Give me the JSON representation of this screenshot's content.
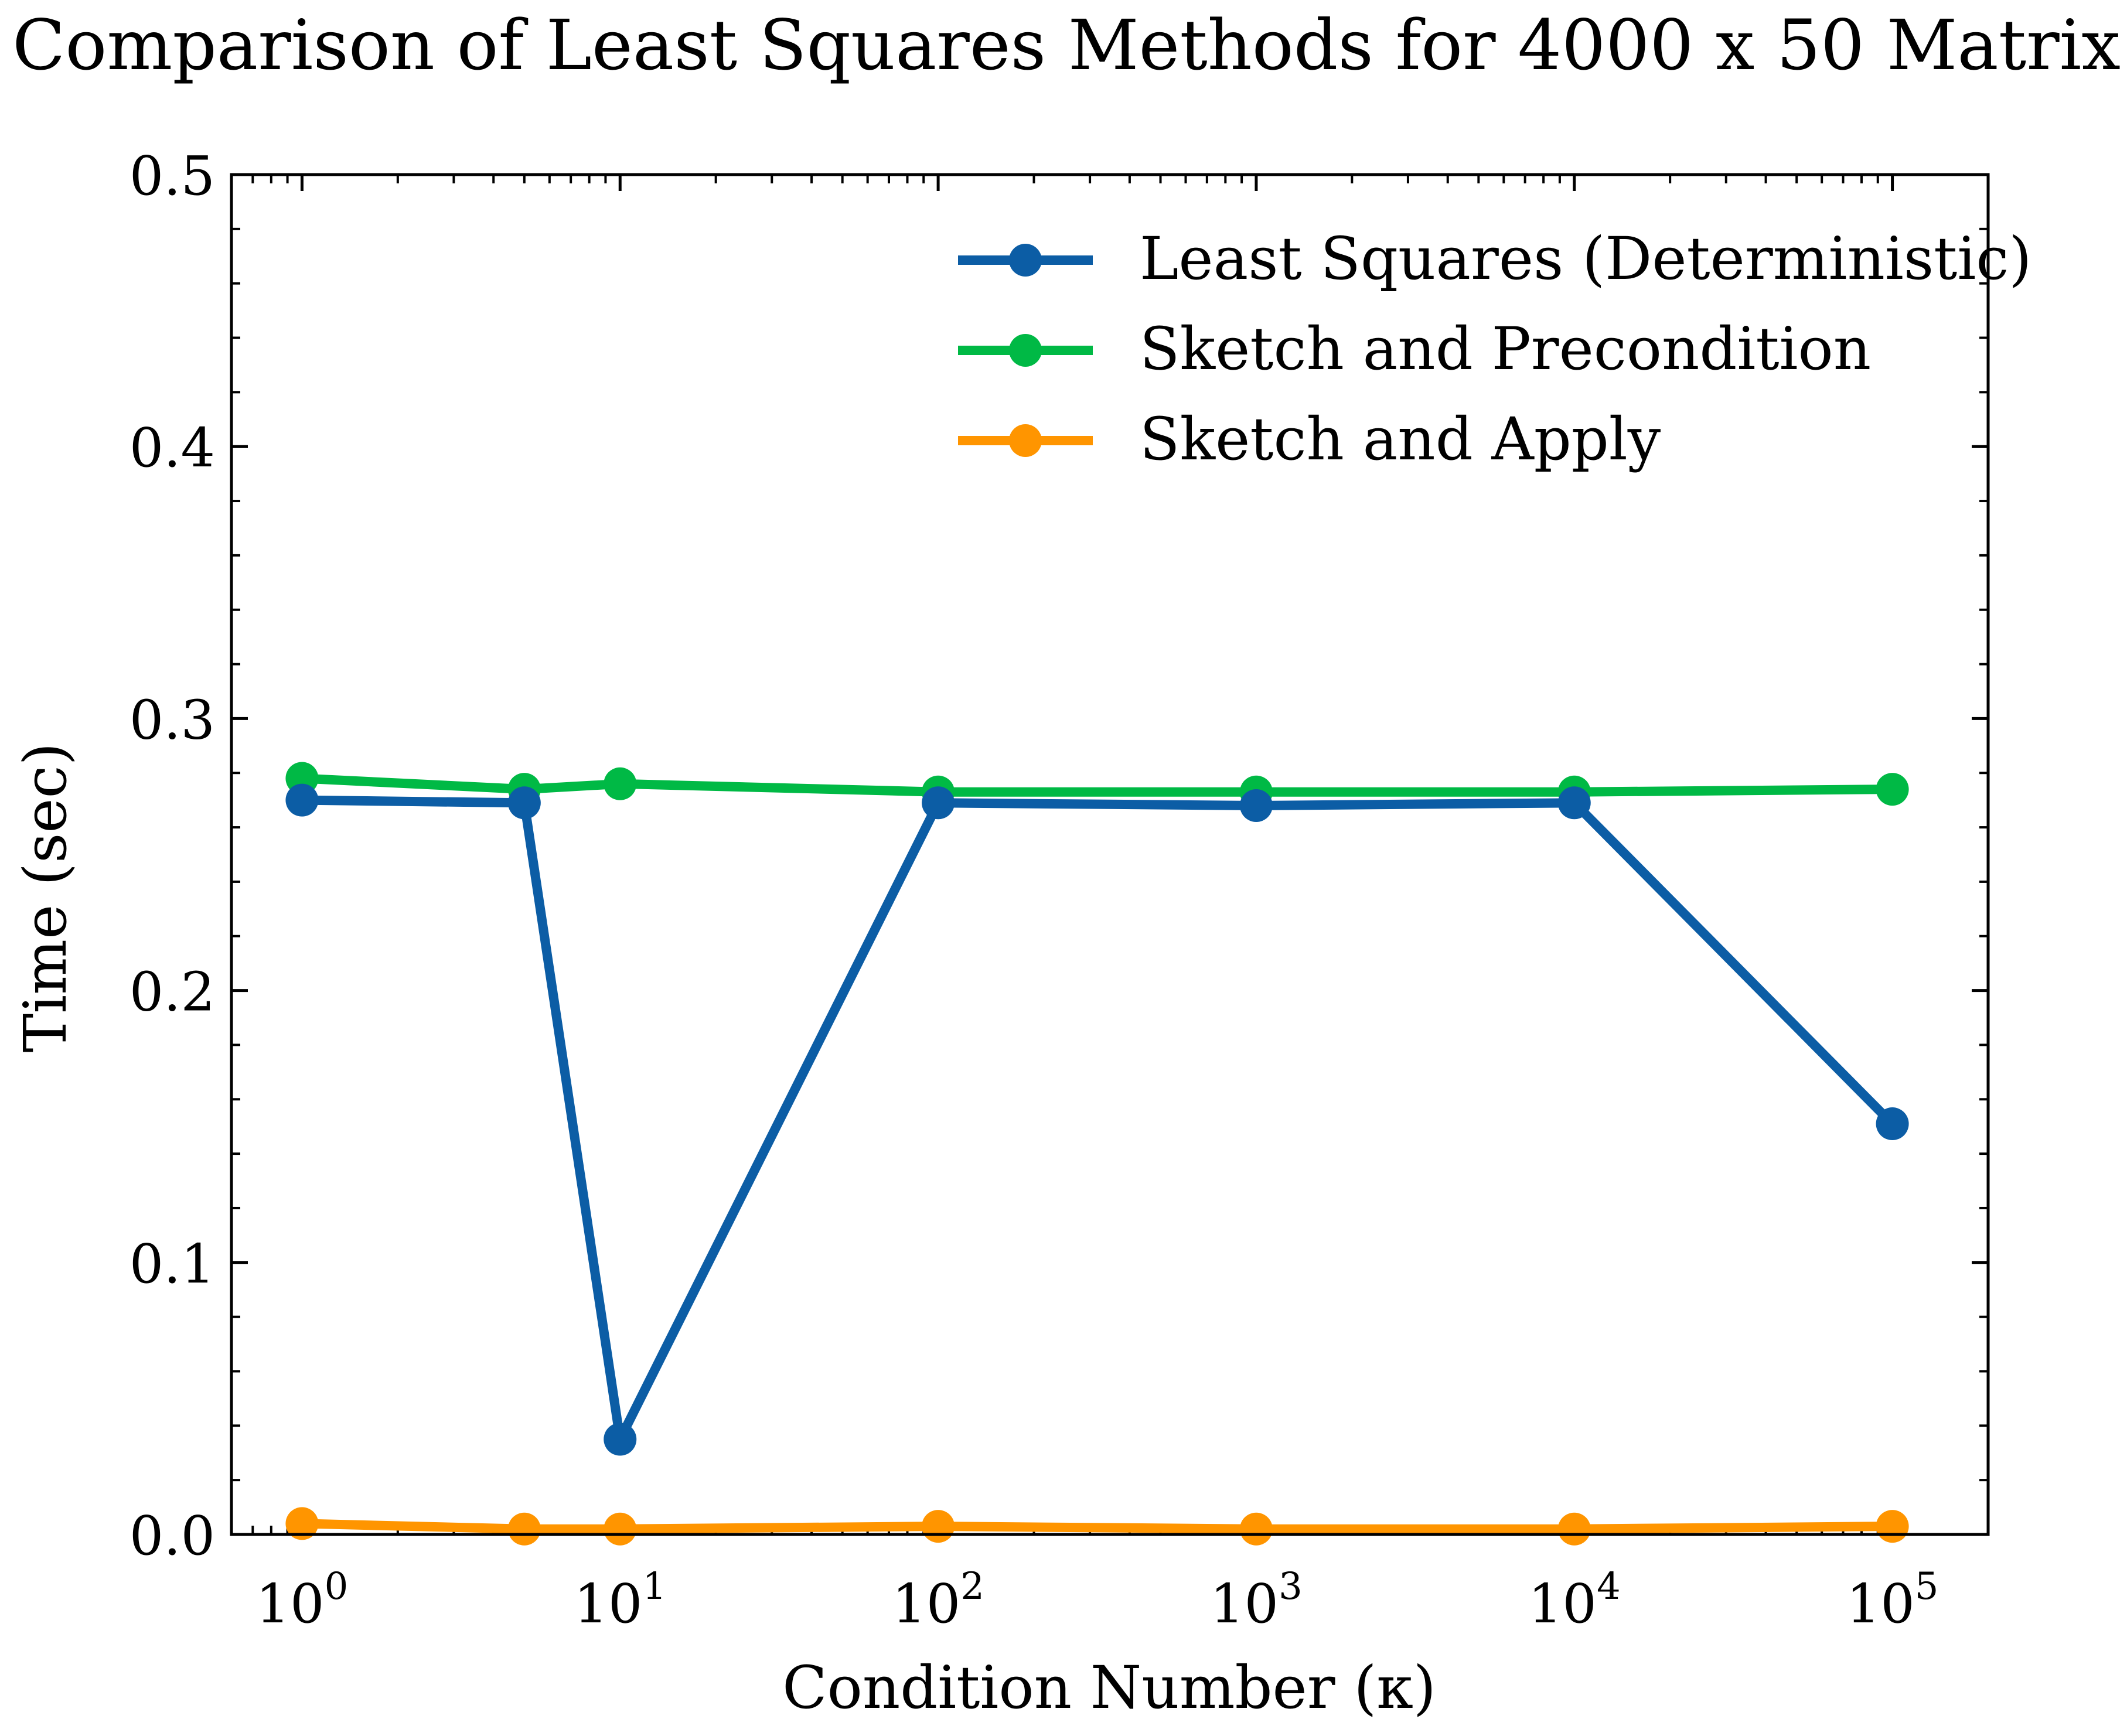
{
  "chart_data": {
    "type": "line",
    "title": "Comparison of Least Squares Methods for 4000 x 50 Matrix",
    "xlabel": "Condition Number (κ)",
    "ylabel": "Time (sec)",
    "xscale": "log",
    "xlim": [
      0.6,
      200000
    ],
    "ylim": [
      0.0,
      0.5
    ],
    "grid": false,
    "legend_position": "top-right",
    "x": [
      1,
      5,
      10,
      100,
      1000,
      10000,
      100000
    ],
    "xticks": [
      {
        "value": 1,
        "base": "10",
        "exp": "0"
      },
      {
        "value": 10,
        "base": "10",
        "exp": "1"
      },
      {
        "value": 100,
        "base": "10",
        "exp": "2"
      },
      {
        "value": 1000,
        "base": "10",
        "exp": "3"
      },
      {
        "value": 10000,
        "base": "10",
        "exp": "4"
      },
      {
        "value": 100000,
        "base": "10",
        "exp": "5"
      }
    ],
    "yticks": [
      {
        "value": 0.0,
        "label": "0.0"
      },
      {
        "value": 0.1,
        "label": "0.1"
      },
      {
        "value": 0.2,
        "label": "0.2"
      },
      {
        "value": 0.3,
        "label": "0.3"
      },
      {
        "value": 0.4,
        "label": "0.4"
      },
      {
        "value": 0.5,
        "label": "0.5"
      }
    ],
    "series": [
      {
        "name": "Least Squares (Deterministic)",
        "color": "#0C5DA5",
        "values": [
          0.27,
          0.269,
          0.035,
          0.269,
          0.268,
          0.269,
          0.151
        ]
      },
      {
        "name": "Sketch and Precondition",
        "color": "#00B945",
        "values": [
          0.278,
          0.274,
          0.276,
          0.273,
          0.273,
          0.273,
          0.274
        ]
      },
      {
        "name": "Sketch and Apply",
        "color": "#FF9500",
        "values": [
          0.004,
          0.002,
          0.002,
          0.003,
          0.002,
          0.002,
          0.003
        ]
      }
    ]
  }
}
